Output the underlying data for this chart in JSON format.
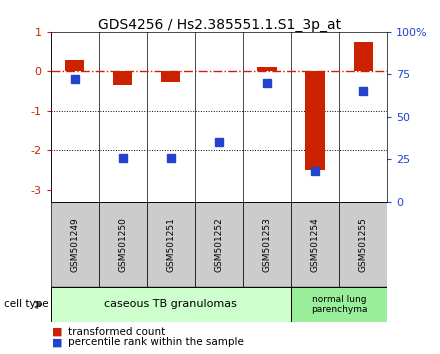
{
  "title": "GDS4256 / Hs2.385551.1.S1_3p_at",
  "samples": [
    "GSM501249",
    "GSM501250",
    "GSM501251",
    "GSM501252",
    "GSM501253",
    "GSM501254",
    "GSM501255"
  ],
  "red_values": [
    0.3,
    -0.35,
    -0.28,
    0.01,
    0.1,
    -2.5,
    0.75
  ],
  "blue_percentiles": [
    72,
    26,
    26,
    35,
    70,
    18,
    65
  ],
  "ylim_left": [
    -3.3,
    1.0
  ],
  "ylim_right": [
    0,
    100
  ],
  "yticks_left": [
    1,
    0,
    -1,
    -2,
    -3
  ],
  "ytick_labels_left": [
    "1",
    "0",
    "-1",
    "-2",
    "-3"
  ],
  "yticks_right": [
    0,
    25,
    50,
    75,
    100
  ],
  "ytick_labels_right": [
    "0",
    "25",
    "50",
    "75",
    "100%"
  ],
  "hline_y": 0,
  "dotted_lines": [
    -1,
    -2
  ],
  "red_color": "#cc2200",
  "blue_color": "#2244cc",
  "dashed_line_color": "#cc2200",
  "group1_label": "caseous TB granulomas",
  "group2_label": "normal lung\nparenchyma",
  "group1_n": 5,
  "group2_n": 2,
  "group1_color": "#ccffcc",
  "group2_color": "#99ee99",
  "cell_type_label": "cell type",
  "legend_red": "transformed count",
  "legend_blue": "percentile rank within the sample",
  "bar_width": 0.4,
  "blue_marker_size": 6,
  "background_color": "#ffffff",
  "plot_bg_color": "#ffffff",
  "sample_label_bg": "#cccccc",
  "title_fontsize": 10,
  "axis_fontsize": 8,
  "label_fontsize": 7,
  "legend_fontsize": 7.5
}
